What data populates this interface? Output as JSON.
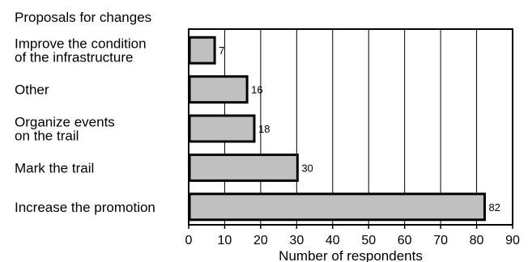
{
  "chart_data": {
    "type": "bar",
    "orientation": "horizontal",
    "title": "Proposals for changes",
    "xlabel": "Number of respondents",
    "ylabel": "",
    "categories": [
      [
        "Improve the condition",
        "of the infrastructure"
      ],
      [
        "Other"
      ],
      [
        "Organize events",
        "on the trail"
      ],
      [
        "Mark the trail"
      ],
      [
        "Increase the promotion"
      ]
    ],
    "values": [
      7,
      16,
      18,
      30,
      82
    ],
    "xlim": [
      0,
      90
    ],
    "xticks": [
      0,
      10,
      20,
      30,
      40,
      50,
      60,
      70,
      80,
      90
    ],
    "grid": "vertical",
    "colors": {
      "bar_fill": "#c0c0c0",
      "bar_stroke": "#000000",
      "grid": "#000000"
    }
  }
}
